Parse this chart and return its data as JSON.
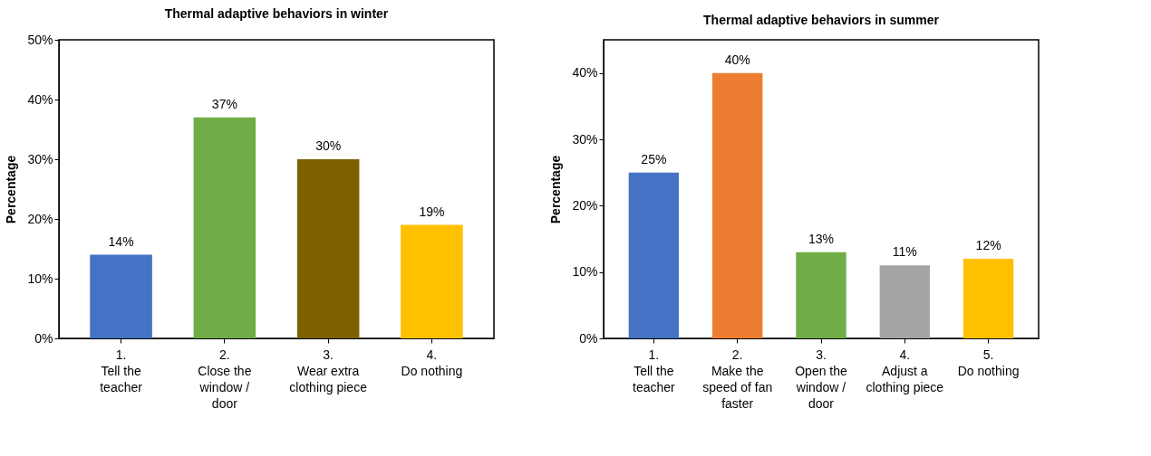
{
  "chart_data": [
    {
      "type": "bar",
      "title": "Thermal adaptive behaviors in winter",
      "ylabel": "Percentage",
      "categories": [
        "1.\nTell the\nteacher",
        "2.\nClose the\nwindow /\ndoor",
        "3.\nWear extra\nclothing piece",
        "4.\nDo nothing"
      ],
      "values": [
        14,
        37,
        30,
        19
      ],
      "colors": [
        "#4472c4",
        "#70ad47",
        "#7f6000",
        "#ffc000"
      ],
      "value_labels": [
        "14%",
        "37%",
        "30%",
        "19%"
      ],
      "ylim": [
        0,
        50
      ],
      "yticks": [
        {
          "value": 0,
          "label": "0%"
        },
        {
          "value": 10,
          "label": "10%"
        },
        {
          "value": 20,
          "label": "20%"
        },
        {
          "value": 30,
          "label": "30%"
        },
        {
          "value": 40,
          "label": "40%"
        },
        {
          "value": 50,
          "label": "50%"
        }
      ],
      "grid": false,
      "legend": false
    },
    {
      "type": "bar",
      "title": "Thermal adaptive behaviors in summer",
      "ylabel": "Percentage",
      "categories": [
        "1.\nTell the\nteacher",
        "2.\nMake the\nspeed of fan\nfaster",
        "3.\nOpen the\nwindow /\ndoor",
        "4.\nAdjust a\nclothing piece",
        "5.\nDo nothing"
      ],
      "values": [
        25,
        40,
        13,
        11,
        12
      ],
      "colors": [
        "#4472c4",
        "#ed7d31",
        "#70ad47",
        "#a5a5a5",
        "#ffc000"
      ],
      "value_labels": [
        "25%",
        "40%",
        "13%",
        "11%",
        "12%"
      ],
      "ylim": [
        0,
        45
      ],
      "yticks": [
        {
          "value": 0,
          "label": "0%"
        },
        {
          "value": 10,
          "label": "10%"
        },
        {
          "value": 20,
          "label": "20%"
        },
        {
          "value": 30,
          "label": "30%"
        },
        {
          "value": 40,
          "label": "40%"
        }
      ],
      "grid": false,
      "legend": false
    }
  ]
}
